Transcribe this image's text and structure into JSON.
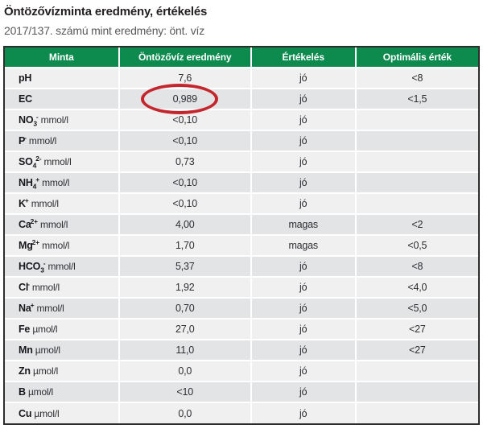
{
  "page": {
    "title": "Öntözővízminta eredmény, értékelés",
    "subtitle": "2017/137. számú mint eredmény: önt. víz"
  },
  "colors": {
    "header_green": "#0d8b4f",
    "row_light": "#f0f0f1",
    "row_dark": "#e3e4e6",
    "annotation_red": "#c4262d",
    "table_border": "#2d2d2d"
  },
  "annotation": {
    "shape": "hand-drawn-red-ellipse",
    "marks": "EC result value 0,989",
    "color": "#c4262d"
  },
  "table": {
    "columns": [
      "Minta",
      "Öntözővíz eredmény",
      "Értékelés",
      "Optimális érték"
    ],
    "rows": [
      {
        "param": {
          "base": "pH",
          "sub": "",
          "sup": "",
          "unit": ""
        },
        "result": "7,6",
        "evaluation": "jó",
        "optimal": "<8",
        "circled": false
      },
      {
        "param": {
          "base": "EC",
          "sub": "",
          "sup": "",
          "unit": ""
        },
        "result": "0,989",
        "evaluation": "jó",
        "optimal": "<1,5",
        "circled": true
      },
      {
        "param": {
          "base": "NO",
          "sub": "3",
          "sup": "-",
          "unit": "mmol/l"
        },
        "result": "<0,10",
        "evaluation": "jó",
        "optimal": "",
        "circled": false
      },
      {
        "param": {
          "base": "P",
          "sub": "",
          "sup": "-",
          "unit": "mmol/l"
        },
        "result": "<0,10",
        "evaluation": "jó",
        "optimal": "",
        "circled": false
      },
      {
        "param": {
          "base": "SO",
          "sub": "4",
          "sup": "2-",
          "unit": "mmol/l"
        },
        "result": "0,73",
        "evaluation": "jó",
        "optimal": "",
        "circled": false
      },
      {
        "param": {
          "base": "NH",
          "sub": "4",
          "sup": "+",
          "unit": "mmol/l"
        },
        "result": "<0,10",
        "evaluation": "jó",
        "optimal": "",
        "circled": false
      },
      {
        "param": {
          "base": "K",
          "sub": "",
          "sup": "+",
          "unit": "mmol/l"
        },
        "result": "<0,10",
        "evaluation": "jó",
        "optimal": "",
        "circled": false
      },
      {
        "param": {
          "base": "Ca",
          "sub": "",
          "sup": "2+",
          "unit": "mmol/l"
        },
        "result": "4,00",
        "evaluation": "magas",
        "optimal": "<2",
        "circled": false
      },
      {
        "param": {
          "base": "Mg",
          "sub": "",
          "sup": "2+",
          "unit": "mmol/l"
        },
        "result": "1,70",
        "evaluation": "magas",
        "optimal": "<0,5",
        "circled": false
      },
      {
        "param": {
          "base": "HCO",
          "sub": "3",
          "sup": "-",
          "unit": "mmol/l"
        },
        "result": "5,37",
        "evaluation": "jó",
        "optimal": "<8",
        "circled": false
      },
      {
        "param": {
          "base": "Cl",
          "sub": "",
          "sup": "-",
          "unit": "mmol/l"
        },
        "result": "1,92",
        "evaluation": "jó",
        "optimal": "<4,0",
        "circled": false
      },
      {
        "param": {
          "base": "Na",
          "sub": "",
          "sup": "+",
          "unit": "mmol/l"
        },
        "result": "0,70",
        "evaluation": "jó",
        "optimal": "<5,0",
        "circled": false
      },
      {
        "param": {
          "base": "Fe",
          "sub": "",
          "sup": "",
          "unit": "µmol/l"
        },
        "result": "27,0",
        "evaluation": "jó",
        "optimal": "<27",
        "circled": false
      },
      {
        "param": {
          "base": "Mn",
          "sub": "",
          "sup": "",
          "unit": "µmol/l"
        },
        "result": "11,0",
        "evaluation": "jó",
        "optimal": "<27",
        "circled": false
      },
      {
        "param": {
          "base": "Zn",
          "sub": "",
          "sup": "",
          "unit": "µmol/l"
        },
        "result": "0,0",
        "evaluation": "jó",
        "optimal": "",
        "circled": false
      },
      {
        "param": {
          "base": "B",
          "sub": "",
          "sup": "",
          "unit": "µmol/l"
        },
        "result": "<10",
        "evaluation": "jó",
        "optimal": "",
        "circled": false
      },
      {
        "param": {
          "base": "Cu",
          "sub": "",
          "sup": "",
          "unit": "µmol/l"
        },
        "result": "0,0",
        "evaluation": "jó",
        "optimal": "",
        "circled": false
      }
    ]
  }
}
